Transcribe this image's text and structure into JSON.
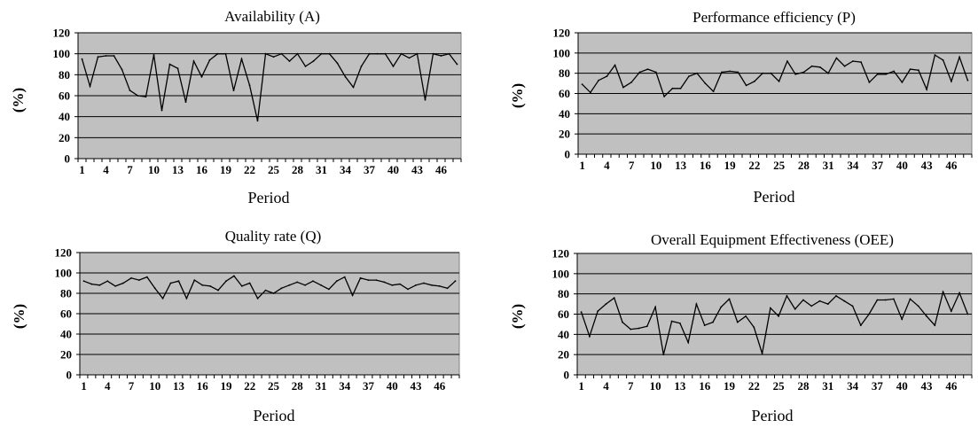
{
  "chart_data": [
    {
      "type": "line",
      "title": "Availability (A)",
      "xlabel": "Period",
      "ylabel": "(%)",
      "ylim": [
        0,
        120
      ],
      "yticks": [
        0,
        20,
        40,
        60,
        80,
        100,
        120
      ],
      "xticks": [
        "1",
        "4",
        "7",
        "10",
        "13",
        "16",
        "19",
        "22",
        "25",
        "28",
        "31",
        "34",
        "37",
        "40",
        "43",
        "46"
      ],
      "grid": true,
      "plot_background": "#c0c0c0",
      "line_color": "#000000",
      "series": [
        {
          "x": [
            1,
            2,
            3,
            4,
            5,
            6,
            7,
            8,
            9,
            10,
            11,
            12,
            13,
            14,
            15,
            16,
            17,
            18,
            19,
            20,
            21,
            22,
            23,
            24,
            25,
            26,
            27,
            28,
            29,
            30,
            31,
            32,
            33,
            34,
            35,
            36,
            37,
            38,
            39,
            40,
            41,
            42,
            43,
            44,
            45,
            46,
            47,
            48
          ],
          "values": [
            95,
            69,
            97,
            98,
            98,
            85,
            65,
            60,
            59,
            99,
            46,
            90,
            86,
            54,
            93,
            78,
            94,
            100,
            100,
            65,
            95,
            70,
            36,
            100,
            97,
            100,
            93,
            100,
            88,
            93,
            100,
            100,
            91,
            78,
            68,
            88,
            100,
            100,
            100,
            88,
            100,
            96,
            100,
            56,
            100,
            98,
            100,
            90
          ]
        }
      ]
    },
    {
      "type": "line",
      "title": "Performance efficiency (P)",
      "xlabel": "Period",
      "ylabel": "(%)",
      "ylim": [
        0,
        120
      ],
      "yticks": [
        0,
        20,
        40,
        60,
        80,
        100,
        120
      ],
      "xticks": [
        "1",
        "4",
        "7",
        "10",
        "13",
        "16",
        "19",
        "22",
        "25",
        "28",
        "31",
        "34",
        "37",
        "40",
        "43",
        "46"
      ],
      "grid": true,
      "plot_background": "#c0c0c0",
      "line_color": "#000000",
      "series": [
        {
          "x": [
            1,
            2,
            3,
            4,
            5,
            6,
            7,
            8,
            9,
            10,
            11,
            12,
            13,
            14,
            15,
            16,
            17,
            18,
            19,
            20,
            21,
            22,
            23,
            24,
            25,
            26,
            27,
            28,
            29,
            30,
            31,
            32,
            33,
            34,
            35,
            36,
            37,
            38,
            39,
            40,
            41,
            42,
            43,
            44,
            45,
            46,
            47,
            48
          ],
          "values": [
            69,
            61,
            73,
            77,
            88,
            66,
            71,
            81,
            84,
            81,
            57,
            65,
            65,
            77,
            80,
            70,
            62,
            81,
            82,
            81,
            68,
            72,
            80,
            80,
            72,
            92,
            79,
            81,
            87,
            86,
            80,
            95,
            87,
            92,
            91,
            71,
            79,
            79,
            82,
            71,
            84,
            83,
            64,
            98,
            93,
            72,
            96,
            73
          ]
        }
      ]
    },
    {
      "type": "line",
      "title": "Quality rate (Q)",
      "xlabel": "Period",
      "ylabel": "(%)",
      "ylim": [
        0,
        120
      ],
      "yticks": [
        0,
        20,
        40,
        60,
        80,
        100,
        120
      ],
      "xticks": [
        "1",
        "4",
        "7",
        "10",
        "13",
        "16",
        "19",
        "22",
        "25",
        "28",
        "31",
        "34",
        "37",
        "40",
        "43",
        "46"
      ],
      "grid": true,
      "plot_background": "#c0c0c0",
      "line_color": "#000000",
      "series": [
        {
          "x": [
            1,
            2,
            3,
            4,
            5,
            6,
            7,
            8,
            9,
            10,
            11,
            12,
            13,
            14,
            15,
            16,
            17,
            18,
            19,
            20,
            21,
            22,
            23,
            24,
            25,
            26,
            27,
            28,
            29,
            30,
            31,
            32,
            33,
            34,
            35,
            36,
            37,
            38,
            39,
            40,
            41,
            42,
            43,
            44,
            45,
            46,
            47,
            48
          ],
          "values": [
            92,
            89,
            88,
            92,
            87,
            90,
            95,
            93,
            96,
            85,
            75,
            90,
            92,
            75,
            93,
            88,
            87,
            83,
            92,
            97,
            87,
            90,
            75,
            83,
            80,
            85,
            88,
            91,
            88,
            92,
            88,
            84,
            92,
            96,
            78,
            95,
            93,
            93,
            91,
            88,
            89,
            84,
            88,
            90,
            88,
            87,
            85,
            92
          ]
        }
      ]
    },
    {
      "type": "line",
      "title": "Overall Equipment Effectiveness (OEE)",
      "xlabel": "Period",
      "ylabel": "(%)",
      "ylim": [
        0,
        120
      ],
      "yticks": [
        0,
        20,
        40,
        60,
        80,
        100,
        120
      ],
      "xticks": [
        "1",
        "4",
        "7",
        "10",
        "13",
        "16",
        "19",
        "22",
        "25",
        "28",
        "31",
        "34",
        "37",
        "40",
        "43",
        "46"
      ],
      "grid": true,
      "plot_background": "#c0c0c0",
      "line_color": "#000000",
      "series": [
        {
          "x": [
            1,
            2,
            3,
            4,
            5,
            6,
            7,
            8,
            9,
            10,
            11,
            12,
            13,
            14,
            15,
            16,
            17,
            18,
            19,
            20,
            21,
            22,
            23,
            24,
            25,
            26,
            27,
            28,
            29,
            30,
            31,
            32,
            33,
            34,
            35,
            36,
            37,
            38,
            39,
            40,
            41,
            42,
            43,
            44,
            45,
            46,
            47,
            48
          ],
          "values": [
            62,
            38,
            63,
            70,
            76,
            52,
            45,
            46,
            48,
            67,
            20,
            53,
            51,
            32,
            70,
            49,
            52,
            67,
            75,
            52,
            58,
            47,
            21,
            66,
            58,
            78,
            65,
            74,
            68,
            73,
            70,
            78,
            73,
            68,
            49,
            60,
            74,
            74,
            75,
            55,
            75,
            68,
            58,
            49,
            82,
            63,
            81,
            60
          ]
        }
      ]
    }
  ]
}
